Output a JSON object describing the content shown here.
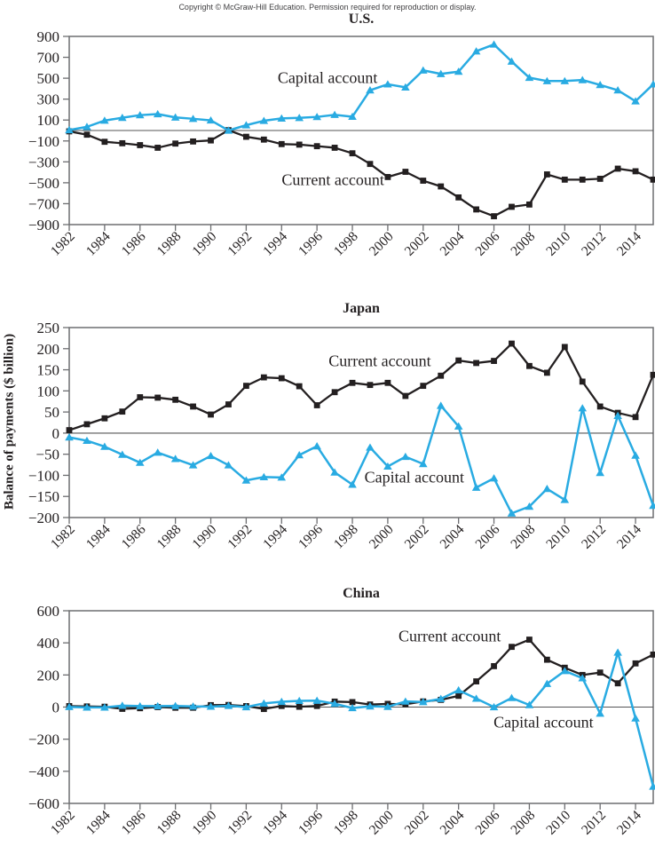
{
  "header": {
    "copyright": "Copyright © McGraw-Hill Education. Permission required for reproduction or display."
  },
  "y_axis_label": "Balance of payments ($ billion)",
  "colors": {
    "current_account": "#231f20",
    "capital_account": "#29abe2",
    "frame": "#6d6e71",
    "zero_line": "#545456",
    "tick_text": "#231f20"
  },
  "chart_data": [
    {
      "type": "line",
      "title": "U.S.",
      "ylabel": "Balance of payments ($ billion)",
      "ylim": [
        -900,
        900
      ],
      "yticks": [
        900,
        700,
        500,
        300,
        100,
        -100,
        -300,
        -500,
        -700,
        -900
      ],
      "xticks": [
        1982,
        1984,
        1986,
        1988,
        1990,
        1992,
        1994,
        1996,
        1998,
        2000,
        2002,
        2004,
        2006,
        2008,
        2010,
        2012,
        2014
      ],
      "x": [
        1982,
        1983,
        1984,
        1985,
        1986,
        1987,
        1988,
        1989,
        1990,
        1991,
        1992,
        1993,
        1994,
        1995,
        1996,
        1997,
        1998,
        1999,
        2000,
        2001,
        2002,
        2003,
        2004,
        2005,
        2006,
        2007,
        2008,
        2009,
        2010,
        2011,
        2012,
        2013,
        2014,
        2015
      ],
      "series": [
        {
          "name": "Current account",
          "color": "#231f20",
          "marker": "square",
          "values": [
            -8,
            -40,
            -108,
            -122,
            -140,
            -165,
            -125,
            -105,
            -95,
            3,
            -60,
            -87,
            -130,
            -135,
            -150,
            -165,
            -218,
            -320,
            -445,
            -395,
            -480,
            -535,
            -640,
            -755,
            -820,
            -730,
            -708,
            -420,
            -470,
            -470,
            -462,
            -365,
            -390,
            -470
          ]
        },
        {
          "name": "Capital account",
          "color": "#29abe2",
          "marker": "triangle",
          "values": [
            4,
            35,
            95,
            122,
            147,
            157,
            125,
            112,
            97,
            0,
            51,
            93,
            116,
            121,
            130,
            150,
            132,
            385,
            442,
            413,
            575,
            541,
            563,
            758,
            823,
            660,
            505,
            473,
            473,
            483,
            436,
            385,
            280,
            442
          ]
        }
      ],
      "annotations": [
        {
          "label": "Capital account",
          "year": 1996.6,
          "value": 500
        },
        {
          "label": "Current account",
          "year": 1996.9,
          "value": -475
        }
      ]
    },
    {
      "type": "line",
      "title": "Japan",
      "ylabel": "Balance of payments ($ billion)",
      "ylim": [
        -200,
        250
      ],
      "yticks": [
        250,
        200,
        150,
        100,
        50,
        0,
        -50,
        -100,
        -150,
        -200
      ],
      "xticks": [
        1982,
        1984,
        1986,
        1988,
        1990,
        1992,
        1994,
        1996,
        1998,
        2000,
        2002,
        2004,
        2006,
        2008,
        2010,
        2012,
        2014
      ],
      "x": [
        1982,
        1983,
        1984,
        1985,
        1986,
        1987,
        1988,
        1989,
        1990,
        1991,
        1992,
        1993,
        1994,
        1995,
        1996,
        1997,
        1998,
        1999,
        2000,
        2001,
        2002,
        2003,
        2004,
        2005,
        2006,
        2007,
        2008,
        2009,
        2010,
        2011,
        2012,
        2013,
        2014,
        2015
      ],
      "series": [
        {
          "name": "Current account",
          "color": "#231f20",
          "marker": "square",
          "values": [
            7,
            21,
            35,
            51,
            85,
            84,
            79,
            63,
            44,
            68,
            112,
            132,
            130,
            111,
            66,
            97,
            119,
            114,
            119,
            88,
            112,
            136,
            172,
            166,
            171,
            212,
            159,
            143,
            204,
            122,
            63,
            48,
            38,
            138
          ]
        },
        {
          "name": "Capital account",
          "color": "#29abe2",
          "marker": "triangle",
          "values": [
            -10,
            -18,
            -32,
            -51,
            -70,
            -46,
            -61,
            -76,
            -54,
            -76,
            -112,
            -104,
            -105,
            -52,
            -31,
            -93,
            -122,
            -34,
            -79,
            -56,
            -73,
            65,
            16,
            -129,
            -107,
            -190,
            -174,
            -132,
            -158,
            59,
            -94,
            41,
            -53,
            -172
          ]
        }
      ],
      "annotations": [
        {
          "label": "Current account",
          "year": 1999.55,
          "value": 170
        },
        {
          "label": "Capital account",
          "year": 2001.5,
          "value": -106
        }
      ]
    },
    {
      "type": "line",
      "title": "China",
      "ylabel": "Balance of payments ($ billion)",
      "ylim": [
        -600,
        600
      ],
      "yticks": [
        600,
        400,
        200,
        0,
        -200,
        -400,
        -600
      ],
      "xticks": [
        1982,
        1984,
        1986,
        1988,
        1990,
        1992,
        1994,
        1996,
        1998,
        2000,
        2002,
        2004,
        2006,
        2008,
        2010,
        2012,
        2014
      ],
      "x": [
        1982,
        1983,
        1984,
        1985,
        1986,
        1987,
        1988,
        1989,
        1990,
        1991,
        1992,
        1993,
        1994,
        1995,
        1996,
        1997,
        1998,
        1999,
        2000,
        2001,
        2002,
        2003,
        2004,
        2005,
        2006,
        2007,
        2008,
        2009,
        2010,
        2011,
        2012,
        2013,
        2014,
        2015
      ],
      "series": [
        {
          "name": "Current account",
          "color": "#231f20",
          "marker": "square",
          "values": [
            6,
            4,
            2,
            -11,
            -7,
            0,
            -4,
            -4,
            12,
            13,
            6,
            -12,
            7,
            2,
            7,
            34,
            31,
            16,
            20,
            17,
            35,
            45,
            70,
            160,
            255,
            375,
            420,
            295,
            245,
            200,
            215,
            148,
            272,
            327
          ]
        },
        {
          "name": "Capital account",
          "color": "#29abe2",
          "marker": "triangle",
          "values": [
            1,
            -2,
            -2,
            9,
            6,
            6,
            7,
            4,
            3,
            8,
            0,
            23,
            33,
            39,
            40,
            21,
            -6,
            5,
            2,
            35,
            32,
            51,
            105,
            53,
            0,
            57,
            13,
            145,
            225,
            180,
            -40,
            340,
            -70,
            -495
          ]
        }
      ],
      "annotations": [
        {
          "label": "Current account",
          "year": 2003.5,
          "value": 440
        },
        {
          "label": "Capital account",
          "year": 2008.8,
          "value": -97
        }
      ]
    }
  ]
}
